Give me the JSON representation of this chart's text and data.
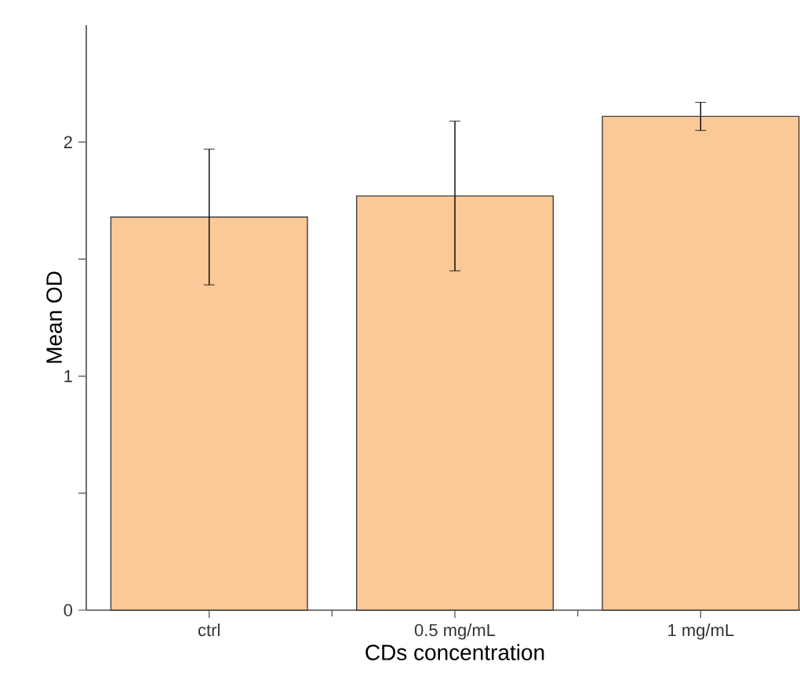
{
  "chart_data": {
    "type": "bar",
    "xlabel": "CDs concentration",
    "ylabel": "Mean OD",
    "categories": [
      "ctrl",
      "0.5 mg/mL",
      "1 mg/mL"
    ],
    "values": [
      1.68,
      1.77,
      2.11
    ],
    "errors": [
      0.29,
      0.32,
      0.06
    ],
    "color": "#fbc897",
    "ylim": [
      0,
      2.5
    ],
    "yticks": [
      0,
      {
        "value": 0.5,
        "label": null
      },
      1,
      {
        "value": 1.5,
        "label": null
      },
      2
    ],
    "grid": false
  }
}
